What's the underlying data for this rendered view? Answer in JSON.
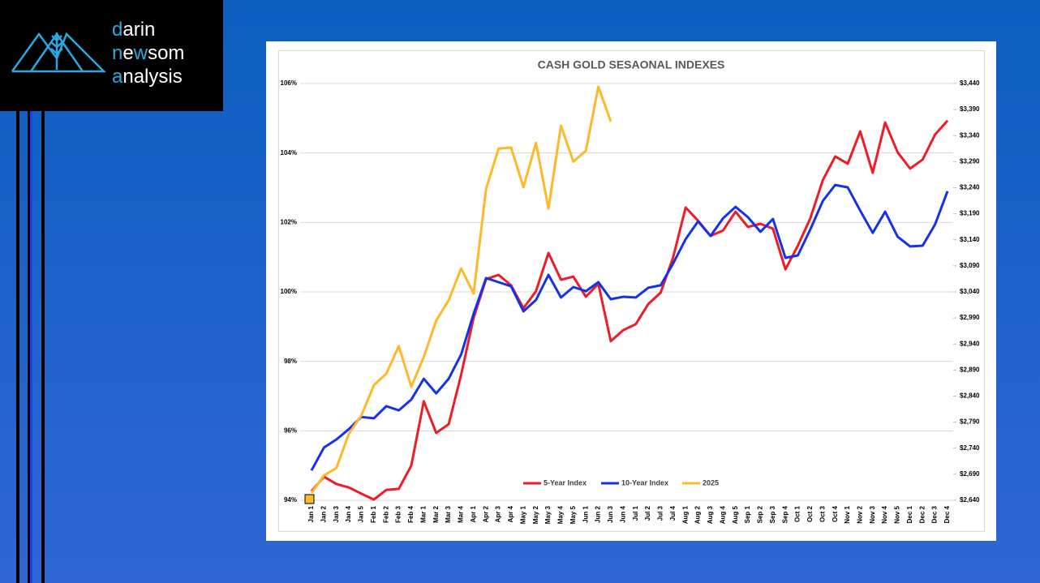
{
  "logo": {
    "lines": [
      [
        "d",
        "arin"
      ],
      [
        "n",
        "e",
        "w",
        "som"
      ],
      [
        "a",
        "nalysis"
      ]
    ]
  },
  "chart_data": {
    "type": "line",
    "title": "CASH GOLD SESAONAL INDEXES",
    "categories": [
      "Jan 1",
      "Jan 2",
      "Jan 3",
      "Jan 4",
      "Jan 5",
      "Feb 1",
      "Feb 2",
      "Feb 3",
      "Feb 4",
      "Mar 1",
      "Mar 2",
      "Mar 3",
      "Mar 4",
      "Apr 1",
      "Apr 2",
      "Apr 3",
      "Apr 4",
      "May 1",
      "May 2",
      "May 3",
      "May 4",
      "May 5",
      "Jun 1",
      "Jun 2",
      "Jun 3",
      "Jun 4",
      "Jul 1",
      "Jul 2",
      "Jul 3",
      "Jul 4",
      "Aug 1",
      "Aug 2",
      "Aug 3",
      "Aug 4",
      "Aug 5",
      "Sep 1",
      "Sep 2",
      "Sep 3",
      "Sep 4",
      "Oct 1",
      "Oct 2",
      "Oct 3",
      "Oct 4",
      "Nov 1",
      "Nov 2",
      "Nov 3",
      "Nov 4",
      "Nov 5",
      "Dec 1",
      "Dec 2",
      "Dec 3",
      "Dec 4"
    ],
    "series": [
      {
        "name": "5-Year Index",
        "color": "#ee1c25",
        "values": [
          94.26,
          94.68,
          94.47,
          94.37,
          94.19,
          94.02,
          94.3,
          94.33,
          95.0,
          96.85,
          95.94,
          96.19,
          97.62,
          99.25,
          100.37,
          100.49,
          100.19,
          99.53,
          100.02,
          101.12,
          100.35,
          100.44,
          99.86,
          100.23,
          98.58,
          98.9,
          99.07,
          99.65,
          99.98,
          101.0,
          102.43,
          102.05,
          101.61,
          101.77,
          102.31,
          101.87,
          101.96,
          101.82,
          100.65,
          101.33,
          102.12,
          103.22,
          103.9,
          103.69,
          104.62,
          103.43,
          104.88,
          104.02,
          103.55,
          103.81,
          104.53,
          104.93
        ]
      },
      {
        "name": "10-Year Index",
        "color": "#1432e6",
        "values": [
          94.86,
          95.52,
          95.75,
          96.05,
          96.4,
          96.36,
          96.71,
          96.59,
          96.9,
          97.5,
          97.08,
          97.5,
          98.2,
          99.37,
          100.4,
          100.28,
          100.16,
          99.44,
          99.77,
          100.49,
          99.84,
          100.14,
          100.02,
          100.28,
          99.79,
          99.86,
          99.84,
          100.12,
          100.19,
          100.82,
          101.52,
          102.03,
          101.61,
          102.12,
          102.45,
          102.15,
          101.73,
          102.1,
          100.98,
          101.05,
          101.8,
          102.62,
          103.08,
          103.01,
          102.34,
          101.7,
          102.31,
          101.59,
          101.31,
          101.33,
          101.94,
          102.9
        ]
      },
      {
        "name": "2025",
        "color": "#fdb92a",
        "axis": "y2",
        "values": [
          2654,
          2688,
          2702,
          2768,
          2803,
          2861,
          2883,
          2936,
          2858,
          2915,
          2985,
          3024,
          3085,
          3037,
          3238,
          3315,
          3317,
          3241,
          3326,
          3200,
          3359,
          3290,
          3311,
          3434,
          3367,
          null,
          null,
          null,
          null,
          null,
          null,
          null,
          null,
          null,
          null,
          null,
          null,
          null,
          null,
          null,
          null,
          null,
          null,
          null,
          null,
          null,
          null,
          null,
          null,
          null,
          null,
          null
        ]
      }
    ],
    "ylim": [
      94,
      106
    ],
    "yticks": [
      {
        "value": 94,
        "label": "94%"
      },
      {
        "value": 96,
        "label": "96%"
      },
      {
        "value": 98,
        "label": "98%"
      },
      {
        "value": 100,
        "label": "100%"
      },
      {
        "value": 102,
        "label": "102%"
      },
      {
        "value": 104,
        "label": "104%"
      },
      {
        "value": 106,
        "label": "106%"
      }
    ],
    "y2lim": [
      2640,
      3440
    ],
    "y2ticks": [
      {
        "value": 2640,
        "label": "$2,640"
      },
      {
        "value": 2690,
        "label": "$2,690"
      },
      {
        "value": 2740,
        "label": "$2,740"
      },
      {
        "value": 2790,
        "label": "$2,790"
      },
      {
        "value": 2840,
        "label": "$2,840"
      },
      {
        "value": 2890,
        "label": "$2,890"
      },
      {
        "value": 2940,
        "label": "$2,940"
      },
      {
        "value": 2990,
        "label": "$2,990"
      },
      {
        "value": 3040,
        "label": "$3,040"
      },
      {
        "value": 3090,
        "label": "$3,090"
      },
      {
        "value": 3140,
        "label": "$3,140"
      },
      {
        "value": 3190,
        "label": "$3,190"
      },
      {
        "value": 3240,
        "label": "$3,240"
      },
      {
        "value": 3290,
        "label": "$3,290"
      },
      {
        "value": 3340,
        "label": "$3,340"
      },
      {
        "value": 3390,
        "label": "$3,390"
      },
      {
        "value": 3440,
        "label": "$3,440"
      }
    ],
    "grid": true,
    "legend": "bottom"
  }
}
